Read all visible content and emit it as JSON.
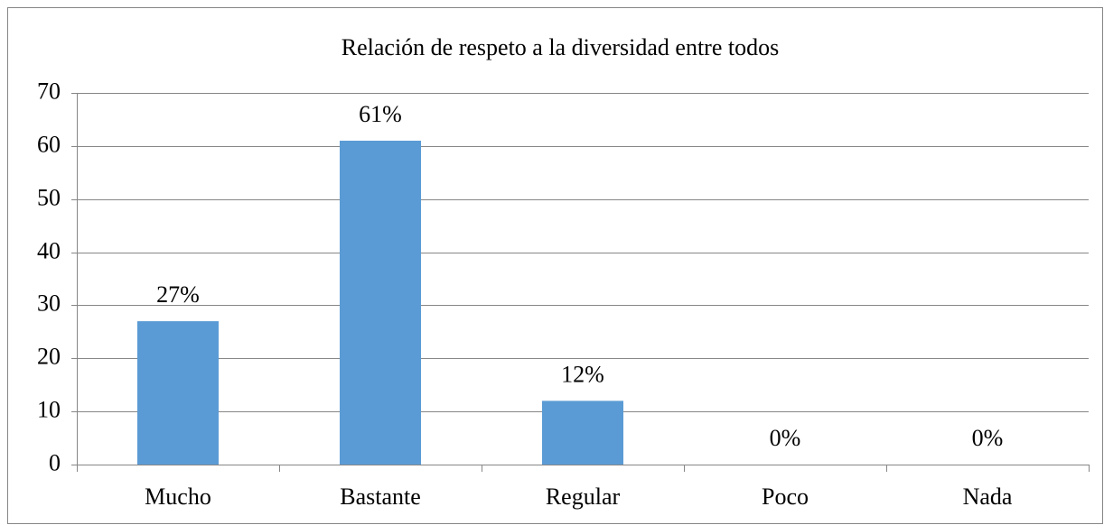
{
  "chart_data": {
    "type": "bar",
    "title": "Relación de respeto a la diversidad entre todos",
    "categories": [
      "Mucho",
      "Bastante",
      "Regular",
      "Poco",
      "Nada"
    ],
    "values": [
      27,
      61,
      12,
      0,
      0
    ],
    "value_labels": [
      "27%",
      "61%",
      "12%",
      "0%",
      "0%"
    ],
    "color": "#5b9bd5",
    "ylim": [
      0,
      70
    ],
    "yticks": [
      0,
      10,
      20,
      30,
      40,
      50,
      60,
      70
    ],
    "grid": true
  }
}
